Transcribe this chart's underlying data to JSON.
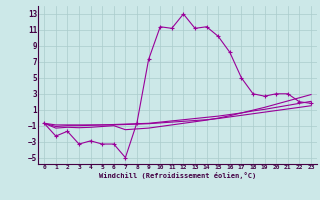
{
  "xlabel": "Windchill (Refroidissement éolien,°C)",
  "background_color": "#cce8e8",
  "grid_color": "#aacccc",
  "line_color": "#990099",
  "xlim": [
    -0.5,
    23.5
  ],
  "ylim": [
    -5.8,
    14.0
  ],
  "yticks": [
    -5,
    -3,
    -1,
    1,
    3,
    5,
    7,
    9,
    11,
    13
  ],
  "xticks": [
    0,
    1,
    2,
    3,
    4,
    5,
    6,
    7,
    8,
    9,
    10,
    11,
    12,
    13,
    14,
    15,
    16,
    17,
    18,
    19,
    20,
    21,
    22,
    23
  ],
  "series1_x": [
    0,
    1,
    2,
    3,
    4,
    5,
    6,
    7,
    8,
    9,
    10,
    11,
    12,
    13,
    14,
    15,
    16,
    17,
    18,
    19,
    20,
    21,
    22,
    23
  ],
  "series1_y": [
    -0.7,
    -2.3,
    -1.7,
    -3.3,
    -2.9,
    -3.3,
    -3.3,
    -5.0,
    -0.6,
    7.3,
    11.4,
    11.2,
    13.0,
    11.2,
    11.4,
    10.2,
    8.2,
    5.0,
    3.0,
    2.7,
    3.0,
    3.0,
    2.0,
    1.8
  ],
  "series2_x": [
    0,
    1,
    2,
    3,
    4,
    5,
    6,
    7,
    8,
    9,
    10,
    11,
    12,
    13,
    14,
    15,
    16,
    17,
    18,
    19,
    20,
    21,
    22,
    23
  ],
  "series2_y": [
    -0.7,
    -0.9,
    -0.9,
    -0.9,
    -0.9,
    -0.9,
    -0.9,
    -0.85,
    -0.8,
    -0.75,
    -0.65,
    -0.55,
    -0.45,
    -0.35,
    -0.25,
    -0.1,
    0.1,
    0.3,
    0.5,
    0.7,
    0.9,
    1.1,
    1.3,
    1.5
  ],
  "series3_x": [
    0,
    1,
    2,
    3,
    4,
    5,
    6,
    7,
    8,
    9,
    10,
    11,
    12,
    13,
    14,
    15,
    16,
    17,
    18,
    19,
    20,
    21,
    22,
    23
  ],
  "series3_y": [
    -0.7,
    -1.1,
    -1.0,
    -1.0,
    -0.95,
    -0.9,
    -0.85,
    -0.8,
    -0.75,
    -0.7,
    -0.55,
    -0.4,
    -0.25,
    -0.1,
    0.05,
    0.2,
    0.4,
    0.6,
    0.85,
    1.05,
    1.3,
    1.55,
    1.8,
    2.05
  ],
  "series4_x": [
    0,
    1,
    2,
    3,
    4,
    5,
    6,
    7,
    8,
    9,
    10,
    11,
    12,
    13,
    14,
    15,
    16,
    17,
    18,
    19,
    20,
    21,
    22,
    23
  ],
  "series4_y": [
    -0.7,
    -1.3,
    -1.2,
    -1.25,
    -1.2,
    -1.1,
    -1.0,
    -1.5,
    -1.4,
    -1.3,
    -1.1,
    -0.9,
    -0.7,
    -0.5,
    -0.3,
    -0.05,
    0.25,
    0.6,
    0.95,
    1.3,
    1.7,
    2.1,
    2.5,
    2.9
  ]
}
